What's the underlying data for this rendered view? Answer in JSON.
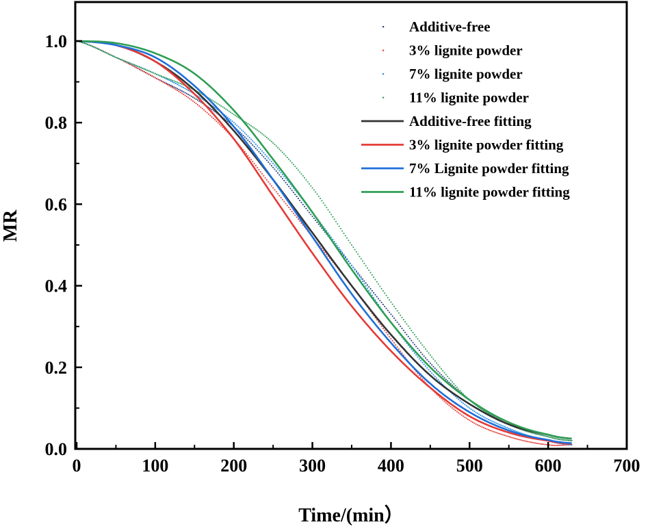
{
  "chart_data": {
    "type": "scatter",
    "title": "",
    "xlabel": "Time/(min）",
    "ylabel": "MR",
    "xlim": [
      0,
      700
    ],
    "ylim": [
      0,
      1.1
    ],
    "xticks": [
      "0",
      "100",
      "200",
      "300",
      "400",
      "500",
      "600",
      "700"
    ],
    "yticks": [
      "0.0",
      "0.2",
      "0.4",
      "0.6",
      "0.8",
      "1.0"
    ],
    "xtick_values": [
      0,
      100,
      200,
      300,
      400,
      500,
      600,
      700
    ],
    "ytick_values": [
      0.0,
      0.2,
      0.4,
      0.6,
      0.8,
      1.0
    ],
    "legend_position": "top-right",
    "series": [
      {
        "name": "Additive-free",
        "kind": "points",
        "color": "#1f3b73",
        "x": [
          0,
          50,
          100,
          150,
          200,
          250,
          300,
          350,
          400,
          450,
          500,
          550,
          600,
          630
        ],
        "y": [
          1.0,
          0.96,
          0.91,
          0.86,
          0.79,
          0.69,
          0.57,
          0.45,
          0.33,
          0.21,
          0.12,
          0.06,
          0.03,
          0.02
        ]
      },
      {
        "name": "3% lignite powder",
        "kind": "points",
        "color": "#e53935",
        "x": [
          0,
          50,
          100,
          150,
          200,
          250,
          300,
          350,
          400,
          450,
          500,
          550,
          600,
          630
        ],
        "y": [
          1.0,
          0.96,
          0.91,
          0.85,
          0.76,
          0.64,
          0.52,
          0.4,
          0.27,
          0.15,
          0.07,
          0.03,
          0.01,
          0.01
        ]
      },
      {
        "name": "7% lignite powder",
        "kind": "points",
        "color": "#1e88e5",
        "x": [
          0,
          50,
          100,
          150,
          200,
          250,
          300,
          350,
          400,
          450,
          500,
          550,
          600,
          630
        ],
        "y": [
          1.0,
          0.96,
          0.92,
          0.87,
          0.8,
          0.7,
          0.58,
          0.45,
          0.31,
          0.19,
          0.1,
          0.05,
          0.02,
          0.01
        ]
      },
      {
        "name": "11% lignite powder",
        "kind": "points",
        "color": "#2e9e55",
        "x": [
          0,
          50,
          100,
          150,
          200,
          250,
          300,
          350,
          400,
          450,
          500,
          550,
          600,
          630
        ],
        "y": [
          1.0,
          0.96,
          0.92,
          0.88,
          0.82,
          0.75,
          0.64,
          0.5,
          0.36,
          0.23,
          0.12,
          0.06,
          0.03,
          0.02
        ]
      },
      {
        "name": "Additive-free fitting",
        "kind": "line",
        "color": "#333333",
        "x": [
          0,
          50,
          100,
          150,
          200,
          250,
          300,
          350,
          400,
          450,
          500,
          550,
          600,
          630
        ],
        "y": [
          1.0,
          0.99,
          0.95,
          0.88,
          0.78,
          0.66,
          0.53,
          0.4,
          0.28,
          0.18,
          0.11,
          0.06,
          0.035,
          0.025
        ]
      },
      {
        "name": "3% lignite powder fitting",
        "kind": "line",
        "color": "#e53935",
        "x": [
          0,
          50,
          100,
          150,
          200,
          250,
          300,
          350,
          400,
          450,
          500,
          550,
          600,
          630
        ],
        "y": [
          1.0,
          0.99,
          0.95,
          0.87,
          0.76,
          0.62,
          0.48,
          0.35,
          0.24,
          0.15,
          0.08,
          0.04,
          0.02,
          0.012
        ]
      },
      {
        "name": "7% Lignite powder fitting",
        "kind": "line",
        "color": "#1e6fd9",
        "x": [
          0,
          50,
          100,
          150,
          200,
          250,
          300,
          350,
          400,
          450,
          500,
          550,
          600,
          630
        ],
        "y": [
          1.0,
          0.99,
          0.96,
          0.89,
          0.79,
          0.66,
          0.52,
          0.38,
          0.26,
          0.16,
          0.09,
          0.045,
          0.022,
          0.014
        ]
      },
      {
        "name": "11% lignite powder fitting",
        "kind": "line",
        "color": "#2e9e55",
        "x": [
          0,
          50,
          100,
          150,
          200,
          250,
          300,
          350,
          400,
          450,
          500,
          550,
          600,
          630
        ],
        "y": [
          1.0,
          0.995,
          0.97,
          0.92,
          0.83,
          0.71,
          0.58,
          0.44,
          0.31,
          0.2,
          0.12,
          0.065,
          0.035,
          0.025
        ]
      }
    ]
  }
}
